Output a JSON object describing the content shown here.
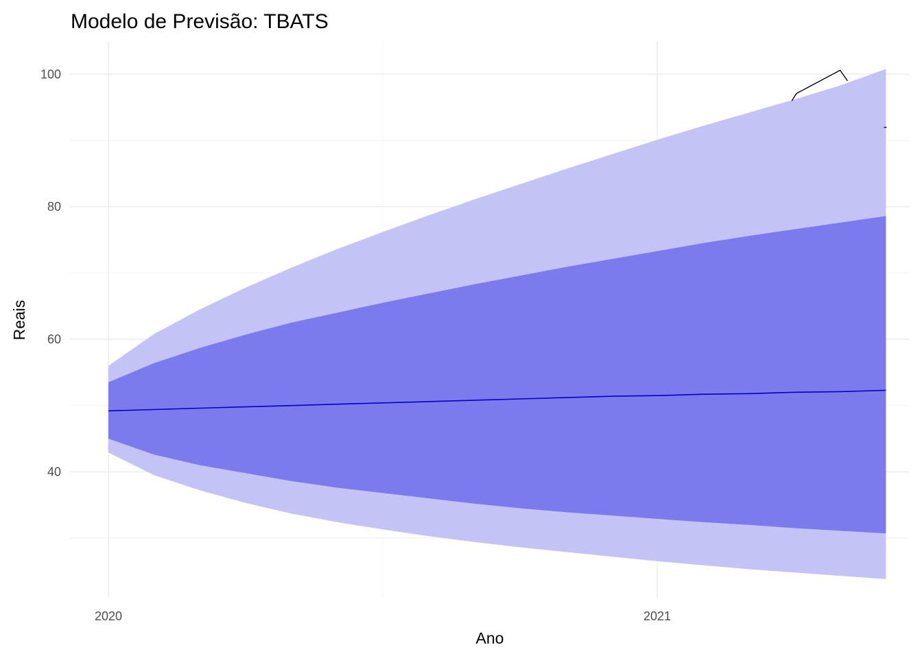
{
  "chart_data": {
    "type": "area",
    "title": "Modelo de Previsão: TBATS",
    "xlabel": "Ano",
    "ylabel": "Reais",
    "x_axis": {
      "range": [
        2019.93,
        2021.46
      ],
      "ticks": [
        2020,
        2021
      ],
      "tick_labels": [
        "2020",
        "2021"
      ],
      "minor_ticks": [
        2020.5
      ]
    },
    "y_axis": {
      "range": [
        21,
        105
      ],
      "ticks": [
        40,
        60,
        80,
        100
      ],
      "tick_labels": [
        "40",
        "60",
        "80",
        "100"
      ],
      "minor_ticks": [
        30,
        50,
        70,
        90
      ]
    },
    "grid": true,
    "legend": "none",
    "x": [
      2020.0,
      2020.0833,
      2020.1667,
      2020.25,
      2020.3333,
      2020.4167,
      2020.5,
      2020.5833,
      2020.6667,
      2020.75,
      2020.8333,
      2020.9167,
      2021.0,
      2021.0833,
      2021.1667,
      2021.25,
      2021.3333,
      2021.4167
    ],
    "series": [
      {
        "role": "point forecast",
        "color": "#0000cc",
        "values": [
          49.2,
          49.4,
          49.6,
          49.8,
          50.0,
          50.2,
          50.4,
          50.6,
          50.8,
          51.0,
          51.2,
          51.4,
          51.5,
          51.7,
          51.8,
          52.0,
          52.1,
          52.3
        ]
      },
      {
        "role": "inner interval",
        "color": "#7b7bed",
        "lower": [
          45.0,
          42.6,
          41.0,
          39.8,
          38.6,
          37.6,
          36.8,
          36.0,
          35.2,
          34.5,
          33.9,
          33.4,
          32.9,
          32.4,
          32.0,
          31.5,
          31.1,
          30.7
        ],
        "upper": [
          53.5,
          56.4,
          58.7,
          60.7,
          62.5,
          64.0,
          65.5,
          66.9,
          68.3,
          69.6,
          70.9,
          72.1,
          73.3,
          74.5,
          75.6,
          76.6,
          77.6,
          78.6
        ]
      },
      {
        "role": "outer interval",
        "color": "#c3c3f5",
        "lower": [
          42.9,
          39.5,
          37.2,
          35.3,
          33.7,
          32.4,
          31.3,
          30.3,
          29.4,
          28.6,
          27.9,
          27.2,
          26.5,
          25.9,
          25.3,
          24.8,
          24.3,
          23.8
        ],
        "upper": [
          56.0,
          60.8,
          64.5,
          67.8,
          70.8,
          73.6,
          76.2,
          78.7,
          81.1,
          83.4,
          85.7,
          87.9,
          90.1,
          92.2,
          94.2,
          96.2,
          98.3,
          100.8
        ]
      }
    ],
    "overlay_line": {
      "color": "#000000",
      "points": [
        [
          2021.2454,
          96.0
        ],
        [
          2021.2538,
          97.1
        ],
        [
          2021.3333,
          100.6
        ],
        [
          2021.3467,
          99.0
        ]
      ],
      "end_mark": [
        2021.4167,
        92.0
      ]
    }
  }
}
